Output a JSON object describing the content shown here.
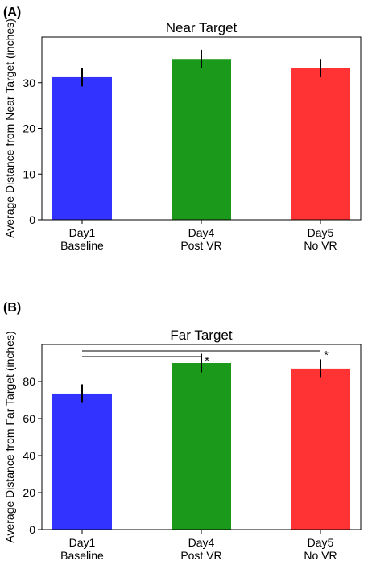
{
  "chart_data": [
    {
      "panel_label": "(A)",
      "type": "bar",
      "title": "Near Target",
      "ylabel": "Average Distance from Near Target (inches)",
      "xlabel": "",
      "categories": [
        [
          "Day1",
          "Baseline"
        ],
        [
          "Day4",
          "Post VR"
        ],
        [
          "Day5",
          "No VR"
        ]
      ],
      "values": [
        31.2,
        35.2,
        33.2
      ],
      "errors": [
        2.0,
        2.0,
        2.0
      ],
      "colors": [
        "#3333ff",
        "#1a991a",
        "#ff3333"
      ],
      "ylim": [
        0,
        40
      ],
      "yticks": [
        0,
        10,
        20,
        30
      ],
      "significance": []
    },
    {
      "panel_label": "(B)",
      "type": "bar",
      "title": "Far Target",
      "ylabel": "Average Distance from Far Target (inches)",
      "xlabel": "",
      "categories": [
        [
          "Day1",
          "Baseline"
        ],
        [
          "Day4",
          "Post VR"
        ],
        [
          "Day5",
          "No VR"
        ]
      ],
      "values": [
        73.5,
        90.0,
        87.0
      ],
      "errors": [
        5.0,
        5.0,
        5.0
      ],
      "colors": [
        "#3333ff",
        "#1a991a",
        "#ff3333"
      ],
      "ylim": [
        0,
        100
      ],
      "yticks": [
        0,
        20,
        40,
        60,
        80
      ],
      "significance": [
        {
          "from": 0,
          "to": 1,
          "label": "*",
          "level": 93.5
        },
        {
          "from": 0,
          "to": 2,
          "label": "*",
          "level": 96.5
        }
      ]
    }
  ]
}
